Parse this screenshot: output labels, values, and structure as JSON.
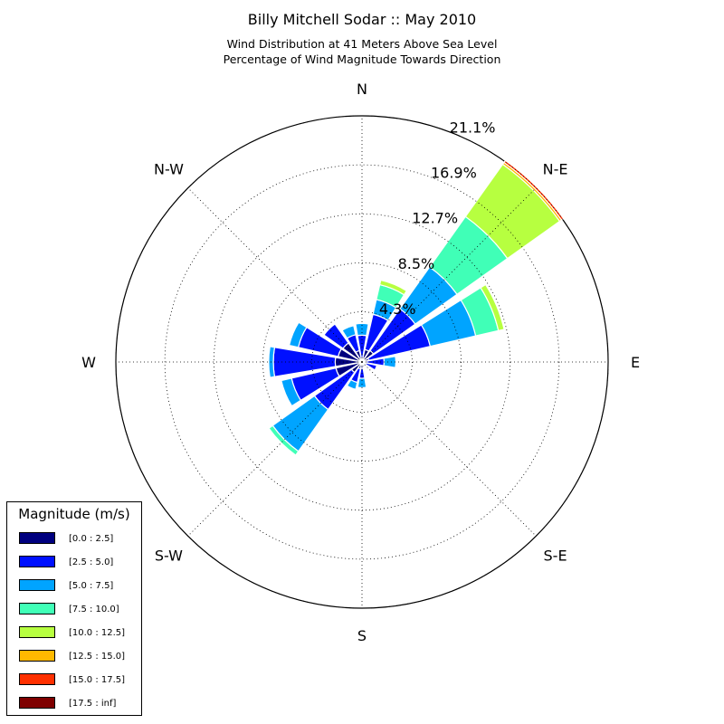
{
  "title": "Billy Mitchell Sodar :: May 2010",
  "subtitle_line1": "Wind Distribution at 41 Meters Above Sea Level",
  "subtitle_line2": "Percentage of Wind Magnitude Towards Direction",
  "legend": {
    "title": "Magnitude (m/s)",
    "items": [
      {
        "label": "[0.0 : 2.5]",
        "color": "#00007f"
      },
      {
        "label": "[2.5 : 5.0]",
        "color": "#0010ff"
      },
      {
        "label": "[5.0 : 7.5]",
        "color": "#00a4ff"
      },
      {
        "label": "[7.5 : 10.0]",
        "color": "#40ffb7"
      },
      {
        "label": "[10.0 : 12.5]",
        "color": "#b7ff40"
      },
      {
        "label": "[12.5 : 15.0]",
        "color": "#ffb900"
      },
      {
        "label": "[15.0 : 17.5]",
        "color": "#ff3000"
      },
      {
        "label": "[17.5 : inf]",
        "color": "#7f0000"
      }
    ]
  },
  "chart_data": {
    "type": "windrose",
    "title": "Billy Mitchell Sodar :: May 2010",
    "direction_labels": [
      "N",
      "N-E",
      "E",
      "S-E",
      "S",
      "S-W",
      "W",
      "N-W"
    ],
    "radial_ticks": [
      "4.3%",
      "8.5%",
      "12.7%",
      "16.9%",
      "21.1%"
    ],
    "radial_tick_values": [
      4.3,
      8.5,
      12.7,
      16.9,
      21.1
    ],
    "r_max": 21.1,
    "grid": true,
    "bins": [
      "[0.0 : 2.5]",
      "[2.5 : 5.0]",
      "[5.0 : 7.5]",
      "[7.5 : 10.0]",
      "[10.0 : 12.5]",
      "[12.5 : 15.0]",
      "[15.0 : 17.5]",
      "[17.5 : inf]"
    ],
    "directions_deg": [
      0,
      22.5,
      45,
      67.5,
      90,
      112.5,
      135,
      157.5,
      180,
      202.5,
      225,
      247.5,
      270,
      292.5,
      315,
      337.5
    ],
    "cumulative_percent": [
      [
        0.0,
        0.35,
        2.3,
        3.3,
        0,
        0,
        0,
        0
      ],
      [
        0.0,
        1.1,
        4.2,
        5.5,
        6.8,
        7.2,
        0,
        0
      ],
      [
        0.0,
        1.2,
        5.6,
        10.0,
        15.3,
        20.8,
        21.0,
        21.2
      ],
      [
        0.0,
        0.6,
        6.0,
        10.0,
        12.0,
        12.5,
        0,
        0
      ],
      [
        0.0,
        0.4,
        1.9,
        2.9,
        0,
        0,
        0,
        0
      ],
      [
        0.0,
        0.35,
        1.3,
        0,
        0,
        0,
        0,
        0
      ],
      [
        0.0,
        0.4,
        0,
        0,
        0,
        0,
        0,
        0
      ],
      [
        0.0,
        0.45,
        0,
        0,
        0,
        0,
        0,
        0
      ],
      [
        0.0,
        0.55,
        1.4,
        2.2,
        0,
        0,
        0,
        0
      ],
      [
        0.0,
        0.6,
        1.8,
        2.4,
        0,
        0,
        0,
        0
      ],
      [
        0.0,
        1.1,
        5.0,
        9.4,
        9.8,
        0,
        0,
        0
      ],
      [
        0.0,
        2.3,
        6.2,
        7.1,
        0,
        0,
        0,
        0
      ],
      [
        0.0,
        2.3,
        7.6,
        8.0,
        0,
        0,
        0,
        0
      ],
      [
        0.0,
        2.1,
        5.6,
        6.4,
        0,
        0,
        0,
        0
      ],
      [
        0.0,
        2.0,
        4.0,
        0,
        0,
        0,
        0,
        0
      ],
      [
        0.0,
        1.0,
        2.4,
        3.2,
        0,
        0,
        0,
        0
      ]
    ]
  }
}
